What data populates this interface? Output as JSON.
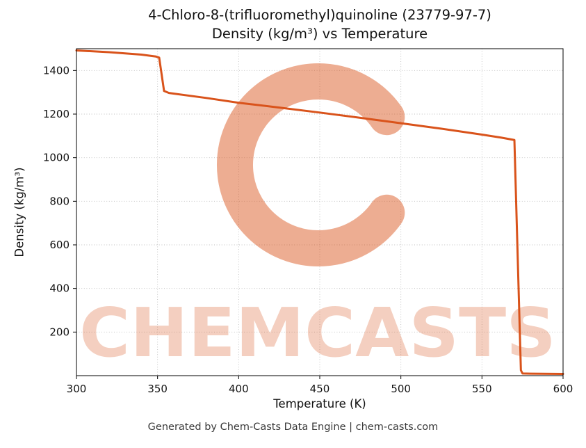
{
  "chart_data": {
    "type": "line",
    "title": "4-Chloro-8-(trifluoromethyl)quinoline (23779-97-7)",
    "subtitle": "Density (kg/m³) vs Temperature",
    "xlabel": "Temperature (K)",
    "ylabel": "Density (kg/m³)",
    "xlim": [
      300,
      600
    ],
    "ylim": [
      0,
      1500
    ],
    "xticks": [
      300,
      350,
      400,
      450,
      500,
      550,
      600
    ],
    "yticks": [
      200,
      400,
      600,
      800,
      1000,
      1200,
      1400
    ],
    "grid": true,
    "legend": false,
    "series": [
      {
        "name": "Density",
        "x": [
          300,
          320,
          340,
          349,
          351,
          354,
          357,
          380,
          400,
          425,
          450,
          475,
          500,
          525,
          550,
          562,
          570,
          574,
          575,
          580,
          600
        ],
        "y": [
          1492,
          1484,
          1473,
          1464,
          1459,
          1306,
          1297,
          1274,
          1252,
          1230,
          1207,
          1183,
          1158,
          1133,
          1106,
          1092,
          1081,
          25,
          10,
          9,
          8
        ]
      }
    ]
  },
  "watermark": {
    "logo": "chemcasts-c-logo",
    "text": "CHEMCASTS"
  },
  "footer": "Generated by Chem-Casts Data Engine | chem-casts.com",
  "colors": {
    "line": "#d9531b",
    "grid": "#bfbfbf",
    "watermark": "#d9531b",
    "axis": "#000000",
    "text": "#141414",
    "footer": "#3a3a3a"
  }
}
